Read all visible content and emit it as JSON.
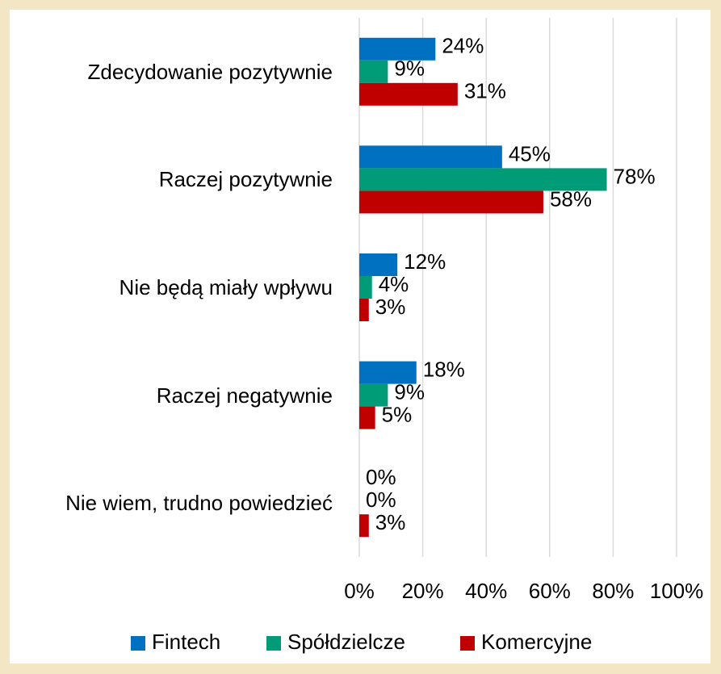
{
  "chart_data": {
    "type": "hbar",
    "categories": [
      "Zdecydowanie pozytywnie",
      "Raczej pozytywnie",
      "Nie będą miały wpływu",
      "Raczej negatywnie",
      "Nie wiem, trudno powiedzieć"
    ],
    "series": [
      {
        "name": "Fintech",
        "color": "#0070c0",
        "values": [
          24,
          45,
          12,
          18,
          0
        ],
        "value_labels": [
          "24%",
          "45%",
          "12%",
          "18%",
          "0%"
        ]
      },
      {
        "name": "Spółdzielcze",
        "color": "#009b77",
        "values": [
          9,
          78,
          4,
          9,
          0
        ],
        "value_labels": [
          "9%",
          "78%",
          "4%",
          "9%",
          "0%"
        ]
      },
      {
        "name": "Komercyjne",
        "color": "#c00000",
        "values": [
          31,
          58,
          3,
          5,
          3
        ],
        "value_labels": [
          "31%",
          "58%",
          "3%",
          "5%",
          "3%"
        ]
      }
    ],
    "xlim": [
      0,
      100
    ],
    "xticks": [
      {
        "value": 0,
        "label": "0%"
      },
      {
        "value": 20,
        "label": "20%"
      },
      {
        "value": 40,
        "label": "40%"
      },
      {
        "value": 60,
        "label": "60%"
      },
      {
        "value": 80,
        "label": "80%"
      },
      {
        "value": 100,
        "label": "100%"
      }
    ],
    "grid": true,
    "legend": "bottom"
  }
}
